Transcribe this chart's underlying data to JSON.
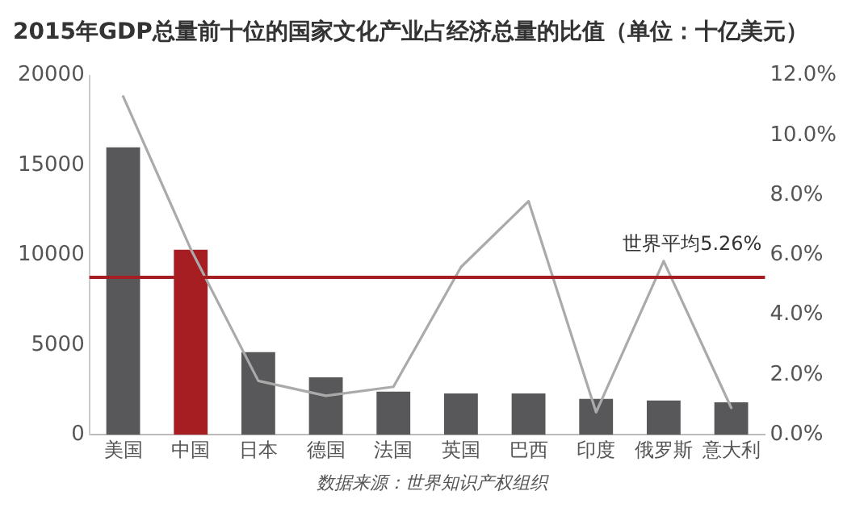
{
  "chart_data": {
    "type": "bar",
    "title": "2015年GDP总量前十位的国家文化产业占经济总量的比值（单位：十亿美元）",
    "categories": [
      "美国",
      "中国",
      "日本",
      "德国",
      "法国",
      "英国",
      "巴西",
      "印度",
      "俄罗斯",
      "意大利"
    ],
    "series": [
      {
        "colors": [
          "#58585a",
          "#a61e22",
          "#58585a",
          "#58585a",
          "#58585a",
          "#58585a",
          "#58585a",
          "#58585a",
          "#58585a",
          "#58585a"
        ],
        "values": [
          16000,
          10300,
          4600,
          3200,
          2400,
          2300,
          2300,
          2000,
          1900,
          1800
        ]
      },
      {
        "type": "line",
        "axis": "y2",
        "color": "#aaaaaa",
        "marker": "none",
        "values": [
          11.3,
          6.2,
          1.8,
          1.3,
          1.6,
          5.6,
          7.8,
          0.75,
          5.8,
          0.9
        ]
      }
    ],
    "ylim": [
      0,
      20000
    ],
    "yticks": [
      0,
      5000,
      10000,
      15000,
      20000
    ],
    "y2lim": [
      0,
      12
    ],
    "y2ticks": [
      {
        "value": 0,
        "label": "0.0%"
      },
      {
        "value": 2,
        "label": "2.0%"
      },
      {
        "value": 4,
        "label": "4.0%"
      },
      {
        "value": 6,
        "label": "6.0%"
      },
      {
        "value": 8,
        "label": "8.0%"
      },
      {
        "value": 10,
        "label": "10.0%"
      },
      {
        "value": 12,
        "label": "12.0%"
      }
    ],
    "ref_lines": [
      {
        "axis": "y2",
        "value": 5.26,
        "label": "世界平均5.26%",
        "color": "#a61e22"
      }
    ],
    "grid": false,
    "legend": false,
    "annotations": [
      "数据来源：世界知识产权组织"
    ]
  }
}
